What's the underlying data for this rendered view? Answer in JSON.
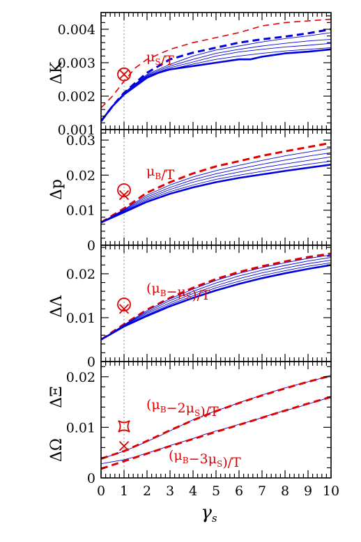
{
  "chart_data": [
    {
      "type": "line",
      "ylabel": "ΔK",
      "xlim": [
        0,
        10
      ],
      "ylim": [
        0.001,
        0.0045
      ],
      "yticks": [
        0.001,
        0.002,
        0.003,
        0.004
      ],
      "ytick_labels": [
        "0.001",
        "0.002",
        "0.003",
        "0.004"
      ],
      "annotation": "μS/T",
      "annotation_label_parts": {
        "main": "μ",
        "sub": "S",
        "rest": "/T"
      },
      "series": [
        {
          "color": "#e00000",
          "style": "dashed-thin",
          "x": [
            0,
            0.5,
            1,
            1.5,
            2,
            3,
            4,
            5,
            6,
            7,
            8,
            9,
            10
          ],
          "y": [
            0.00165,
            0.002,
            0.00245,
            0.00285,
            0.0031,
            0.0034,
            0.0036,
            0.00375,
            0.0039,
            0.0041,
            0.0042,
            0.00425,
            0.0043
          ]
        },
        {
          "color": "#0000dd",
          "style": "dashed-thick",
          "x": [
            0,
            0.5,
            1,
            1.5,
            2,
            2.5,
            3,
            4,
            5,
            6,
            7,
            8,
            9,
            10
          ],
          "y": [
            0.00125,
            0.0017,
            0.0021,
            0.0024,
            0.0027,
            0.0029,
            0.0031,
            0.0033,
            0.00345,
            0.0036,
            0.0037,
            0.00378,
            0.00388,
            0.004
          ]
        },
        {
          "color": "#0000dd",
          "style": "solid-thin",
          "x": [
            0,
            1,
            2,
            3,
            4,
            5,
            6,
            7,
            8,
            9,
            10
          ],
          "y": [
            0.00125,
            0.0021,
            0.00265,
            0.00295,
            0.0032,
            0.00338,
            0.0035,
            0.00362,
            0.00372,
            0.0038,
            0.0039
          ]
        },
        {
          "color": "#0000dd",
          "style": "solid-thin",
          "x": [
            0,
            1,
            2,
            3,
            4,
            5,
            6,
            7,
            8,
            9,
            10
          ],
          "y": [
            0.00125,
            0.0021,
            0.00262,
            0.0029,
            0.0031,
            0.00328,
            0.0034,
            0.0035,
            0.00358,
            0.00365,
            0.0037
          ]
        },
        {
          "color": "#0000dd",
          "style": "solid-thin",
          "x": [
            0,
            1,
            2,
            3,
            4,
            5,
            6,
            7,
            8,
            9,
            10
          ],
          "y": [
            0.00125,
            0.0021,
            0.0026,
            0.00285,
            0.00302,
            0.0032,
            0.00332,
            0.0034,
            0.00347,
            0.00352,
            0.00358
          ]
        },
        {
          "color": "#0000dd",
          "style": "solid-thin",
          "x": [
            0,
            1,
            2,
            3,
            4,
            5,
            6,
            7,
            8,
            9,
            10
          ],
          "y": [
            0.00125,
            0.0021,
            0.00258,
            0.0028,
            0.00296,
            0.0031,
            0.0032,
            0.00328,
            0.00335,
            0.0034,
            0.00345
          ]
        },
        {
          "color": "#0000dd",
          "style": "solid-thick",
          "x": [
            0,
            0.5,
            1,
            1.5,
            2,
            2.5,
            3,
            4,
            5,
            6,
            6.5,
            7,
            8,
            9,
            10
          ],
          "y": [
            0.00125,
            0.0017,
            0.00205,
            0.0023,
            0.00255,
            0.0027,
            0.0028,
            0.0029,
            0.003,
            0.0031,
            0.0031,
            0.00318,
            0.00328,
            0.00333,
            0.0034
          ]
        }
      ],
      "markers": [
        {
          "type": "circle-x",
          "x": 1,
          "y": 0.00265,
          "color": "#e00000"
        }
      ]
    },
    {
      "type": "line",
      "ylabel": "Δp",
      "xlim": [
        0,
        10
      ],
      "ylim": [
        0,
        0.033
      ],
      "yticks": [
        0,
        0.01,
        0.02,
        0.03
      ],
      "ytick_labels": [
        "0",
        "0.01",
        "0.02",
        "0.03"
      ],
      "annotation": "μB/T",
      "annotation_label_parts": {
        "main": "μ",
        "sub": "B",
        "rest": "/T"
      },
      "series": [
        {
          "color": "#e00000",
          "style": "dashed-thick",
          "x": [
            0,
            1,
            2,
            3,
            4,
            5,
            6,
            7,
            8,
            9,
            10
          ],
          "y": [
            0.0065,
            0.0105,
            0.015,
            0.018,
            0.0205,
            0.0225,
            0.024,
            0.0255,
            0.0268,
            0.028,
            0.0292
          ]
        },
        {
          "color": "#0000dd",
          "style": "solid-thin",
          "x": [
            0,
            1,
            2,
            3,
            4,
            5,
            6,
            7,
            8,
            9,
            10
          ],
          "y": [
            0.0065,
            0.0102,
            0.0143,
            0.0172,
            0.0195,
            0.0213,
            0.0228,
            0.0242,
            0.0255,
            0.0266,
            0.0277
          ]
        },
        {
          "color": "#0000dd",
          "style": "solid-thin",
          "x": [
            0,
            1,
            2,
            3,
            4,
            5,
            6,
            7,
            8,
            9,
            10
          ],
          "y": [
            0.0065,
            0.01,
            0.0138,
            0.0165,
            0.0187,
            0.0204,
            0.0218,
            0.0231,
            0.0243,
            0.0254,
            0.0264
          ]
        },
        {
          "color": "#0000dd",
          "style": "solid-thin",
          "x": [
            0,
            1,
            2,
            3,
            4,
            5,
            6,
            7,
            8,
            9,
            10
          ],
          "y": [
            0.0065,
            0.0098,
            0.0133,
            0.0159,
            0.018,
            0.0196,
            0.0209,
            0.0221,
            0.0232,
            0.0242,
            0.0252
          ]
        },
        {
          "color": "#0000dd",
          "style": "solid-thin",
          "x": [
            0,
            1,
            2,
            3,
            4,
            5,
            6,
            7,
            8,
            9,
            10
          ],
          "y": [
            0.0065,
            0.0096,
            0.0129,
            0.0153,
            0.0172,
            0.0188,
            0.02,
            0.0211,
            0.0221,
            0.0231,
            0.024
          ]
        },
        {
          "color": "#0000dd",
          "style": "solid-thick",
          "x": [
            0,
            1,
            2,
            3,
            4,
            5,
            6,
            7,
            8,
            9,
            10
          ],
          "y": [
            0.0065,
            0.0094,
            0.0124,
            0.0147,
            0.0165,
            0.018,
            0.0192,
            0.0202,
            0.0212,
            0.0221,
            0.023
          ]
        }
      ],
      "markers": [
        {
          "type": "circle",
          "x": 1,
          "y": 0.0157,
          "color": "#e00000"
        },
        {
          "type": "x",
          "x": 1,
          "y": 0.0143,
          "color": "#e00000"
        }
      ]
    },
    {
      "type": "line",
      "ylabel": "ΔΛ",
      "xlim": [
        0,
        10
      ],
      "ylim": [
        0,
        0.0265
      ],
      "yticks": [
        0,
        0.01,
        0.02
      ],
      "ytick_labels": [
        "0",
        "0.01",
        "0.02"
      ],
      "annotation": "(μB−μS)/T",
      "annotation_label_parts": {
        "open": "(",
        "main1": "μ",
        "sub1": "B",
        "mid": "−",
        "main2": "μ",
        "sub2": "S",
        "rest": ")/T"
      },
      "series": [
        {
          "color": "#e00000",
          "style": "dashed-thick",
          "x": [
            0,
            1,
            2,
            3,
            4,
            5,
            6,
            7,
            8,
            9,
            10
          ],
          "y": [
            0.005,
            0.0085,
            0.0118,
            0.0145,
            0.0168,
            0.0188,
            0.0204,
            0.0217,
            0.0228,
            0.0238,
            0.0246
          ]
        },
        {
          "color": "#0000dd",
          "style": "solid-thin",
          "x": [
            0,
            1,
            2,
            3,
            4,
            5,
            6,
            7,
            8,
            9,
            10
          ],
          "y": [
            0.005,
            0.0084,
            0.0116,
            0.0143,
            0.0165,
            0.0185,
            0.0201,
            0.0214,
            0.0225,
            0.0235,
            0.0243
          ]
        },
        {
          "color": "#0000dd",
          "style": "solid-thin",
          "x": [
            0,
            1,
            2,
            3,
            4,
            5,
            6,
            7,
            8,
            9,
            10
          ],
          "y": [
            0.005,
            0.0083,
            0.0113,
            0.0139,
            0.016,
            0.0179,
            0.0195,
            0.0208,
            0.0219,
            0.0229,
            0.0237
          ]
        },
        {
          "color": "#0000dd",
          "style": "solid-thin",
          "x": [
            0,
            1,
            2,
            3,
            4,
            5,
            6,
            7,
            8,
            9,
            10
          ],
          "y": [
            0.005,
            0.0082,
            0.011,
            0.0134,
            0.0155,
            0.0173,
            0.0189,
            0.0202,
            0.0213,
            0.0223,
            0.0231
          ]
        },
        {
          "color": "#0000dd",
          "style": "solid-thin",
          "x": [
            0,
            1,
            2,
            3,
            4,
            5,
            6,
            7,
            8,
            9,
            10
          ],
          "y": [
            0.005,
            0.0081,
            0.0107,
            0.013,
            0.015,
            0.0168,
            0.0183,
            0.0196,
            0.0207,
            0.0217,
            0.0225
          ]
        },
        {
          "color": "#0000dd",
          "style": "solid-thick",
          "x": [
            0,
            1,
            2,
            3,
            4,
            5,
            6,
            7,
            8,
            9,
            10
          ],
          "y": [
            0.005,
            0.008,
            0.0104,
            0.0126,
            0.0145,
            0.0162,
            0.0177,
            0.019,
            0.0201,
            0.0211,
            0.022
          ]
        }
      ],
      "markers": [
        {
          "type": "circle",
          "x": 1,
          "y": 0.013,
          "color": "#e00000"
        },
        {
          "type": "x",
          "x": 1,
          "y": 0.012,
          "color": "#e00000"
        }
      ]
    },
    {
      "type": "line",
      "ylabel": "ΔΩ",
      "ylabel2": "ΔΞ",
      "xlim": [
        0,
        10
      ],
      "ylim": [
        0,
        0.023
      ],
      "yticks": [
        0,
        0.01,
        0.02
      ],
      "ytick_labels": [
        "0",
        "0.01",
        "0.02"
      ],
      "xticks": [
        0,
        1,
        2,
        3,
        4,
        5,
        6,
        7,
        8,
        9,
        10
      ],
      "xtick_labels": [
        "0",
        "1",
        "2",
        "3",
        "4",
        "5",
        "6",
        "7",
        "8",
        "9",
        "10"
      ],
      "xlabel": "γs",
      "xlabel_parts": {
        "main": "γ",
        "sub": "s"
      },
      "annotation": "(μB−2μS)/T",
      "annotation_label_parts": {
        "open": "(",
        "main1": "μ",
        "sub1": "B",
        "mid": "−2",
        "main2": "μ",
        "sub2": "S",
        "rest": ")/T"
      },
      "annotation2": "(μB−3μS)/T",
      "annotation2_label_parts": {
        "open": "(",
        "main1": "μ",
        "sub1": "B",
        "mid": "−3",
        "main2": "μ",
        "sub2": "S",
        "rest": ")/T"
      },
      "series": [
        {
          "color": "#0000dd",
          "style": "solid-thin",
          "x": [
            0,
            0.5,
            1,
            1.5,
            2,
            2.5,
            3,
            3.5,
            4,
            4.5,
            5,
            5.5,
            6,
            6.5,
            7,
            7.5,
            8,
            8.5,
            9,
            9.5,
            10
          ],
          "y": [
            0.0038,
            0.0045,
            0.0053,
            0.0062,
            0.0072,
            0.0082,
            0.0093,
            0.0104,
            0.0115,
            0.0124,
            0.0133,
            0.014,
            0.0149,
            0.0156,
            0.0164,
            0.0171,
            0.0178,
            0.0184,
            0.019,
            0.0196,
            0.0203
          ]
        },
        {
          "color": "#e00000",
          "style": "dashed-thick",
          "x": [
            0,
            1,
            2,
            3,
            4,
            5,
            6,
            7,
            8,
            9,
            10
          ],
          "y": [
            0.0038,
            0.0053,
            0.0073,
            0.0094,
            0.0114,
            0.0132,
            0.0148,
            0.0163,
            0.0177,
            0.019,
            0.0202
          ]
        },
        {
          "color": "#0000dd",
          "style": "solid-thin",
          "x": [
            0,
            0.5,
            1,
            1.5,
            2,
            2.5,
            3,
            3.5,
            4,
            4.5,
            5,
            5.5,
            6,
            6.5,
            7,
            7.5,
            8,
            8.5,
            9,
            9.5,
            10
          ],
          "y": [
            0.0028,
            0.0032,
            0.0036,
            0.0042,
            0.0049,
            0.0056,
            0.0064,
            0.0071,
            0.0078,
            0.0086,
            0.0093,
            0.0099,
            0.0106,
            0.0112,
            0.0119,
            0.0127,
            0.0133,
            0.0139,
            0.0146,
            0.0153,
            0.016
          ]
        },
        {
          "color": "#e00000",
          "style": "dashed-thick",
          "x": [
            0,
            1,
            2,
            3,
            4,
            5,
            6,
            7,
            8,
            9,
            10
          ],
          "y": [
            0.0018,
            0.0033,
            0.0048,
            0.0063,
            0.0077,
            0.0091,
            0.0105,
            0.0119,
            0.0133,
            0.0147,
            0.016
          ]
        }
      ],
      "markers": [
        {
          "type": "star4",
          "x": 1,
          "y": 0.0102,
          "color": "#e00000"
        },
        {
          "type": "x",
          "x": 1,
          "y": 0.0063,
          "color": "#e00000"
        }
      ]
    }
  ]
}
